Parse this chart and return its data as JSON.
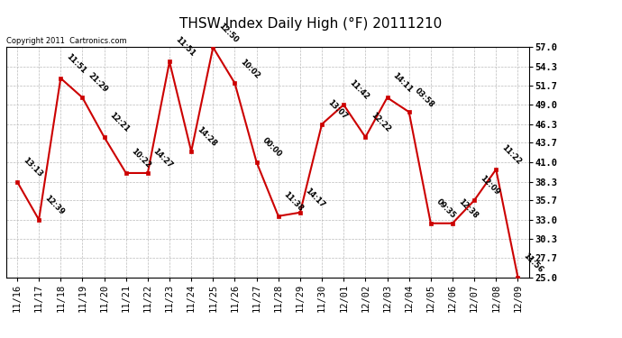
{
  "title": "THSW Index Daily High (°F) 20111210",
  "copyright": "Copyright 2011  Cartronics.com",
  "x_labels": [
    "11/16",
    "11/17",
    "11/18",
    "11/19",
    "11/20",
    "11/21",
    "11/22",
    "11/23",
    "11/24",
    "11/25",
    "11/26",
    "11/27",
    "11/28",
    "11/29",
    "11/30",
    "12/01",
    "12/02",
    "12/03",
    "12/04",
    "12/05",
    "12/06",
    "12/07",
    "12/08",
    "12/09"
  ],
  "y_values": [
    38.3,
    33.0,
    52.7,
    50.0,
    44.5,
    39.5,
    39.5,
    55.0,
    42.5,
    57.0,
    52.0,
    41.0,
    33.5,
    34.0,
    46.3,
    49.0,
    44.5,
    50.0,
    48.0,
    32.5,
    32.5,
    35.7,
    40.0,
    25.0
  ],
  "annotations": [
    "13:13",
    "12:39",
    "11:51",
    "21:29",
    "12:21",
    "10:22",
    "14:27",
    "11:51",
    "14:28",
    "12:50",
    "10:02",
    "00:00",
    "11:38",
    "14:17",
    "13:07",
    "11:42",
    "12:22",
    "14:11",
    "03:58",
    "09:35",
    "12:38",
    "12:09",
    "11:22",
    "11:56"
  ],
  "y_ticks": [
    25.0,
    27.7,
    30.3,
    33.0,
    35.7,
    38.3,
    41.0,
    43.7,
    46.3,
    49.0,
    51.7,
    54.3,
    57.0
  ],
  "y_min": 25.0,
  "y_max": 57.0,
  "line_color": "#cc0000",
  "marker_color": "#cc0000",
  "bg_color": "#ffffff",
  "grid_color": "#bbbbbb",
  "title_fontsize": 11,
  "annotation_fontsize": 6,
  "tick_fontsize": 7.5,
  "copyright_fontsize": 6
}
